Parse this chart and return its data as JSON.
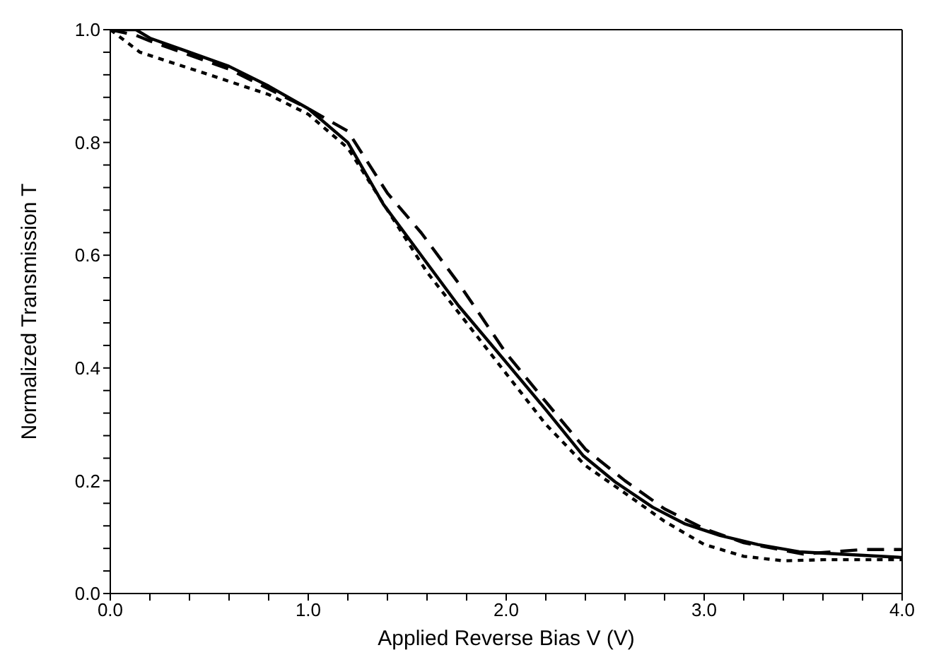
{
  "chart_data": {
    "type": "line",
    "xlabel": "Applied Reverse Bias V  (V)",
    "ylabel": "Normalized Transmission T",
    "xlim": [
      0,
      4
    ],
    "ylim": [
      0,
      1
    ],
    "xticks": [
      {
        "value": 0,
        "label": "0.0"
      },
      {
        "value": 0.2,
        "label": null
      },
      {
        "value": 0.4,
        "label": null
      },
      {
        "value": 0.6,
        "label": null
      },
      {
        "value": 0.8,
        "label": null
      },
      {
        "value": 1,
        "label": "1.0"
      },
      {
        "value": 1.2,
        "label": null
      },
      {
        "value": 1.4,
        "label": null
      },
      {
        "value": 1.6,
        "label": null
      },
      {
        "value": 1.8,
        "label": null
      },
      {
        "value": 2,
        "label": "2.0"
      },
      {
        "value": 2.2,
        "label": null
      },
      {
        "value": 2.4,
        "label": null
      },
      {
        "value": 2.6,
        "label": null
      },
      {
        "value": 2.8,
        "label": null
      },
      {
        "value": 3,
        "label": "3.0"
      },
      {
        "value": 3.2,
        "label": null
      },
      {
        "value": 3.4,
        "label": null
      },
      {
        "value": 3.6,
        "label": null
      },
      {
        "value": 3.8,
        "label": null
      },
      {
        "value": 4,
        "label": "4.0"
      }
    ],
    "yticks": [
      {
        "value": 0,
        "label": "0.0"
      },
      {
        "value": 0.04,
        "label": null
      },
      {
        "value": 0.08,
        "label": null
      },
      {
        "value": 0.12,
        "label": null
      },
      {
        "value": 0.16,
        "label": null
      },
      {
        "value": 0.2,
        "label": "0.2"
      },
      {
        "value": 0.24,
        "label": null
      },
      {
        "value": 0.28,
        "label": null
      },
      {
        "value": 0.32,
        "label": null
      },
      {
        "value": 0.36,
        "label": null
      },
      {
        "value": 0.4,
        "label": "0.4"
      },
      {
        "value": 0.44,
        "label": null
      },
      {
        "value": 0.48,
        "label": null
      },
      {
        "value": 0.52,
        "label": null
      },
      {
        "value": 0.56,
        "label": null
      },
      {
        "value": 0.6,
        "label": "0.6"
      },
      {
        "value": 0.64,
        "label": null
      },
      {
        "value": 0.68,
        "label": null
      },
      {
        "value": 0.72,
        "label": null
      },
      {
        "value": 0.76,
        "label": null
      },
      {
        "value": 0.8,
        "label": "0.8"
      },
      {
        "value": 0.84,
        "label": null
      },
      {
        "value": 0.88,
        "label": null
      },
      {
        "value": 0.92,
        "label": null
      },
      {
        "value": 0.96,
        "label": null
      },
      {
        "value": 1,
        "label": "1.0"
      }
    ],
    "marker": "none",
    "series": [
      {
        "color": "#000000",
        "line_style": "solid",
        "x": [
          0,
          0.13,
          0.2,
          0.4,
          0.6,
          0.8,
          1.0,
          1.2,
          1.38,
          1.57,
          1.76,
          2.0,
          2.2,
          2.39,
          2.55,
          2.74,
          2.9,
          3.08,
          3.27,
          3.48,
          4.0
        ],
        "values": [
          1.0,
          1.0,
          0.985,
          0.96,
          0.935,
          0.9,
          0.86,
          0.8,
          0.69,
          0.6,
          0.51,
          0.41,
          0.326,
          0.244,
          0.198,
          0.153,
          0.124,
          0.103,
          0.087,
          0.074,
          0.064
        ]
      },
      {
        "color": "#000000",
        "line_style": "dashed",
        "x": [
          0,
          0.13,
          0.2,
          0.4,
          0.6,
          0.8,
          1.0,
          1.2,
          1.4,
          1.57,
          1.76,
          2.0,
          2.2,
          2.4,
          2.6,
          2.8,
          3.0,
          3.2,
          3.5,
          3.8,
          4.0
        ],
        "values": [
          1.0,
          0.99,
          0.98,
          0.955,
          0.93,
          0.895,
          0.86,
          0.82,
          0.71,
          0.64,
          0.55,
          0.426,
          0.34,
          0.256,
          0.2,
          0.15,
          0.115,
          0.09,
          0.07,
          0.078,
          0.078
        ]
      },
      {
        "color": "#000000",
        "line_style": "dotted",
        "x": [
          0,
          0.15,
          0.5,
          0.8,
          1.0,
          1.2,
          1.4,
          1.6,
          1.8,
          2.0,
          2.2,
          2.4,
          2.6,
          2.8,
          3.0,
          3.2,
          3.4,
          3.6,
          4.0
        ],
        "values": [
          1.0,
          0.96,
          0.92,
          0.885,
          0.85,
          0.79,
          0.68,
          0.57,
          0.48,
          0.39,
          0.3,
          0.227,
          0.178,
          0.128,
          0.087,
          0.066,
          0.058,
          0.06,
          0.06
        ]
      }
    ]
  }
}
